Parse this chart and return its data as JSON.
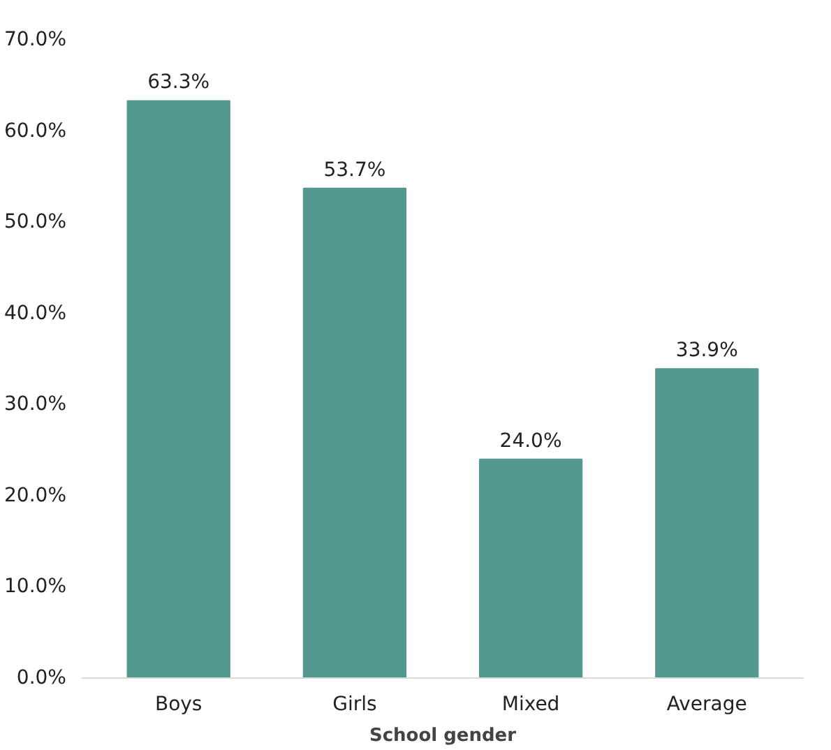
{
  "chart_data": {
    "type": "bar",
    "xlabel": "School gender",
    "categories": [
      "Boys",
      "Girls",
      "Mixed",
      "Average"
    ],
    "values": [
      63.3,
      53.7,
      24.0,
      33.9
    ],
    "value_labels": [
      "63.3%",
      "53.7%",
      "24.0%",
      "33.9%"
    ],
    "color": "#54998f",
    "ylim": [
      0,
      70
    ],
    "yticks": [
      {
        "value": 0,
        "label": "0.0%"
      },
      {
        "value": 10,
        "label": "10.0%"
      },
      {
        "value": 20,
        "label": "20.0%"
      },
      {
        "value": 30,
        "label": "30.0%"
      },
      {
        "value": 40,
        "label": "40.0%"
      },
      {
        "value": 50,
        "label": "50.0%"
      },
      {
        "value": 60,
        "label": "60.0%"
      },
      {
        "value": 70,
        "label": "70.0%"
      }
    ],
    "grid": false
  }
}
